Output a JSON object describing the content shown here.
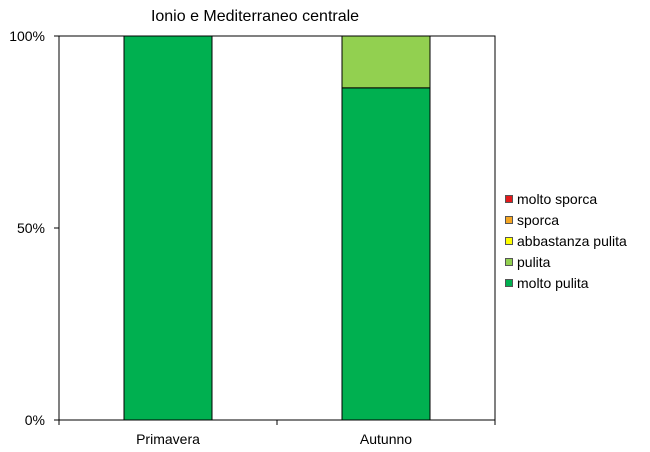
{
  "chart_data": {
    "type": "bar",
    "stacked": true,
    "percent": true,
    "title": "Ionio e Mediterraneo centrale",
    "categories": [
      "Primavera",
      "Autunno"
    ],
    "series": [
      {
        "name": "molto sporca",
        "color": "#e31a1c",
        "values": [
          0,
          0
        ]
      },
      {
        "name": "sporca",
        "color": "#f5a623",
        "values": [
          0,
          0
        ]
      },
      {
        "name": "abbastanza pulita",
        "color": "#ffff00",
        "values": [
          0,
          0
        ]
      },
      {
        "name": "pulita",
        "color": "#92d050",
        "values": [
          0,
          13.5
        ]
      },
      {
        "name": "molto pulita",
        "color": "#00b050",
        "values": [
          100,
          86.5
        ]
      }
    ],
    "y_ticks": [
      "0%",
      "50%",
      "100%"
    ],
    "ylim": [
      0,
      100
    ],
    "grid": false,
    "legend_position": "right"
  }
}
